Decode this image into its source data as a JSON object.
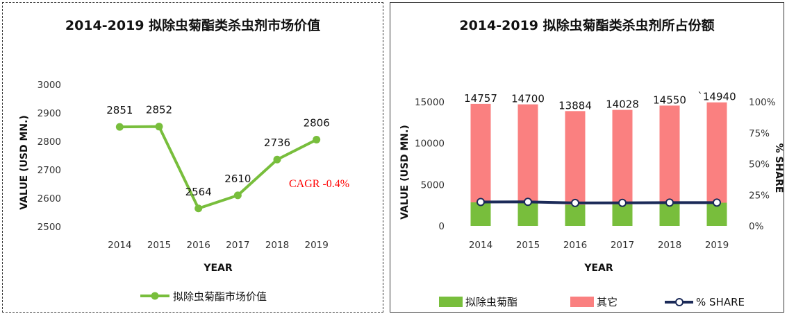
{
  "colors": {
    "green": "#78be3c",
    "salmon": "#fa8080",
    "navy": "#1b2a58",
    "cagr": "#ff0000"
  },
  "left": {
    "title": "2014-2019 拟除虫菊酯类杀虫剂市场价值",
    "annotation": "CAGR -0.4%",
    "legend_label": "拟除虫菊酯市场价值"
  },
  "right": {
    "title": "2014-2019 拟除虫菊酯类杀虫剂所占份额"
  },
  "chart_data": [
    {
      "type": "line",
      "title": "2014-2019 拟除虫菊酯类杀虫剂市场价值",
      "xlabel": "YEAR",
      "ylabel": "VALUE (USD MN.)",
      "categories": [
        "2014",
        "2015",
        "2016",
        "2017",
        "2018",
        "2019"
      ],
      "ylim": [
        2500,
        3000
      ],
      "yticks": [
        "2500",
        "2600",
        "2700",
        "2800",
        "2900",
        "3000"
      ],
      "series": [
        {
          "name": "拟除虫菊酯市场价值",
          "values": [
            2851,
            2852,
            2564,
            2610,
            2736,
            2806
          ]
        }
      ],
      "data_labels": [
        "2851",
        "2852",
        "2564",
        "2610",
        "2736",
        "2806"
      ],
      "annotation": "CAGR -0.4%",
      "legend": "bottom",
      "grid": false
    },
    {
      "type": "bar",
      "stacked": true,
      "title": "2014-2019 拟除虫菊酯类杀虫剂所占份额",
      "xlabel": "YEAR",
      "ylabel": "VALUE (USD MN.)",
      "y2label": "% SHARE",
      "categories": [
        "2014",
        "2015",
        "2016",
        "2017",
        "2018",
        "2019"
      ],
      "ylim": [
        0,
        15000
      ],
      "yticks": [
        "0",
        "5000",
        "10000",
        "15000"
      ],
      "y2lim": [
        0,
        100
      ],
      "y2ticks": [
        "0%",
        "25%",
        "50%",
        "75%",
        "100%"
      ],
      "totals": [
        14757,
        14700,
        13884,
        14028,
        14550,
        14940
      ],
      "total_labels": [
        "14757",
        "14700",
        "13884",
        "14028",
        "14550",
        "`14940"
      ],
      "series": [
        {
          "name": "拟除虫菊酯",
          "type": "bar",
          "values": [
            2851,
            2852,
            2564,
            2610,
            2736,
            2806
          ]
        },
        {
          "name": "其它",
          "type": "bar",
          "values": [
            11906,
            11848,
            11320,
            11418,
            11814,
            12134
          ]
        },
        {
          "name": "% SHARE",
          "type": "line",
          "axis": "right",
          "values": [
            19.3,
            19.4,
            18.5,
            18.6,
            18.8,
            18.8
          ]
        }
      ],
      "legend": "bottom",
      "grid": false
    }
  ]
}
